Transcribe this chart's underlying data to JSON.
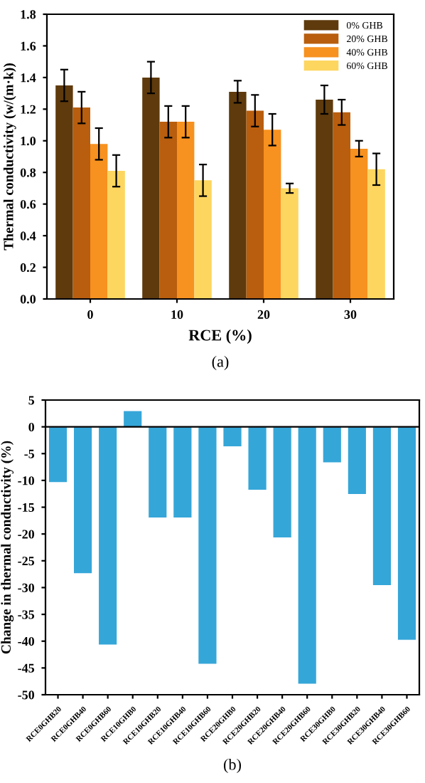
{
  "chart_data": [
    {
      "type": "bar",
      "xlabel": "RCE (%)",
      "ylabel": "Thermal conductivity (w/(m·k))",
      "categories": [
        "0",
        "10",
        "20",
        "30"
      ],
      "series": [
        {
          "name": "0% GHB",
          "color": "#5e3a0c",
          "values": [
            1.35,
            1.4,
            1.31,
            1.26
          ],
          "errors": [
            0.1,
            0.1,
            0.07,
            0.09
          ]
        },
        {
          "name": "20% GHB",
          "color": "#b85e0e",
          "values": [
            1.21,
            1.12,
            1.19,
            1.18
          ],
          "errors": [
            0.1,
            0.1,
            0.1,
            0.08
          ]
        },
        {
          "name": "40% GHB",
          "color": "#f7911f",
          "values": [
            0.98,
            1.12,
            1.07,
            0.95
          ],
          "errors": [
            0.1,
            0.1,
            0.1,
            0.05
          ]
        },
        {
          "name": "60% GHB",
          "color": "#fdd660",
          "values": [
            0.81,
            0.75,
            0.7,
            0.82
          ],
          "errors": [
            0.1,
            0.1,
            0.03,
            0.1
          ]
        }
      ],
      "ylim": [
        0,
        1.8
      ],
      "yticks": [
        {
          "value": 0,
          "label": "0.0"
        },
        0.2,
        0.4,
        0.6,
        0.8,
        {
          "value": 1,
          "label": "1.0"
        },
        1.2,
        1.4,
        1.6,
        1.8
      ],
      "legend": "top right",
      "grid": false,
      "annotations": [
        "(a)"
      ]
    },
    {
      "type": "bar",
      "ylabel": "Change in thermal conductivity (%)",
      "categories": [
        "RCE0GHB20",
        "RCE0GHB40",
        "RCE0GHB60",
        "RCE10GHB0",
        "RCE10GHB20",
        "RCE10GHB40",
        "RCE10GHB60",
        "RCE20GHB0",
        "RCE20GHB20",
        "RCE20GHB40",
        "RCE20GHB60",
        "RCE30GHB0",
        "RCE30GHB20",
        "RCE30GHB40",
        "RCE30GHB60"
      ],
      "values": [
        -10.4,
        -27.4,
        -40.7,
        3,
        -17,
        -17,
        -44.3,
        -3.7,
        -11.8,
        -20.7,
        -48,
        -6.7,
        -12.6,
        -29.6,
        -39.8
      ],
      "color": "#35a6d8",
      "ylim": [
        -50,
        5
      ],
      "yticks": [
        -50,
        -45,
        -40,
        -35,
        -30,
        -25,
        -20,
        -15,
        -10,
        -5,
        0,
        5
      ],
      "ref_lines": [
        {
          "axis": "y",
          "value": 0,
          "color": "#000000"
        }
      ],
      "grid": false,
      "legend": false,
      "annotations": [
        "(b)"
      ]
    }
  ]
}
